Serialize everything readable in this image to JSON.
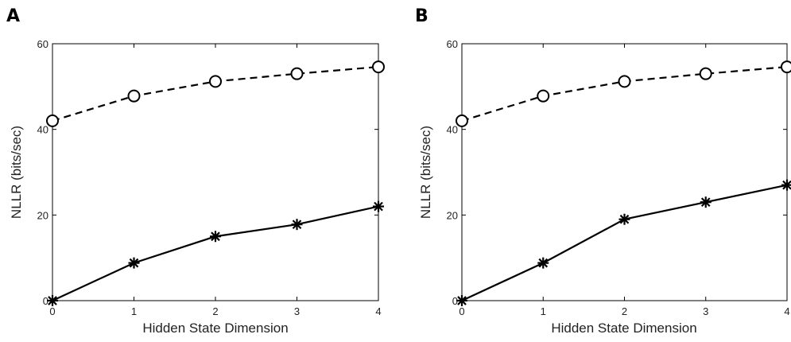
{
  "panels": [
    {
      "letter": "A"
    },
    {
      "letter": "B"
    }
  ],
  "chart_data": [
    {
      "type": "line",
      "panel": "A",
      "title": "",
      "xlabel": "Hidden State Dimension",
      "ylabel": "NLLR (bits/sec)",
      "x": [
        0,
        1,
        2,
        3,
        4
      ],
      "xlim": [
        0,
        4
      ],
      "ylim": [
        0,
        60
      ],
      "xticks": [
        0,
        1,
        2,
        3,
        4
      ],
      "yticks": [
        0,
        20,
        40,
        60
      ],
      "grid": false,
      "legend": "none",
      "series": [
        {
          "style": "dashed",
          "marker": "circle",
          "values": [
            42,
            47.8,
            51.2,
            53,
            54.6
          ]
        },
        {
          "style": "solid",
          "marker": "asterisk",
          "values": [
            0,
            8.8,
            15,
            17.8,
            22
          ]
        }
      ]
    },
    {
      "type": "line",
      "panel": "B",
      "title": "",
      "xlabel": "Hidden State Dimension",
      "ylabel": "NLLR (bits/sec)",
      "x": [
        0,
        1,
        2,
        3,
        4
      ],
      "xlim": [
        0,
        4
      ],
      "ylim": [
        0,
        60
      ],
      "xticks": [
        0,
        1,
        2,
        3,
        4
      ],
      "yticks": [
        0,
        20,
        40,
        60
      ],
      "grid": false,
      "legend": "none",
      "series": [
        {
          "style": "dashed",
          "marker": "circle",
          "values": [
            42,
            47.8,
            51.2,
            53,
            54.6
          ]
        },
        {
          "style": "solid",
          "marker": "asterisk",
          "values": [
            0,
            8.8,
            19,
            23,
            27
          ]
        }
      ]
    }
  ]
}
